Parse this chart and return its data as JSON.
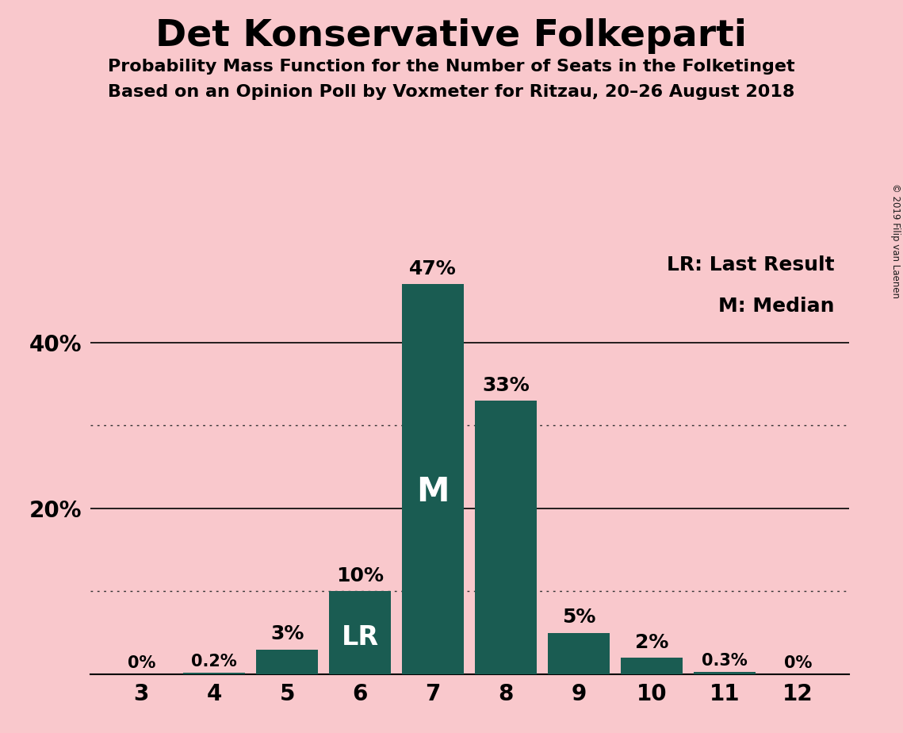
{
  "title": "Det Konservative Folkeparti",
  "subtitle1": "Probability Mass Function for the Number of Seats in the Folketinget",
  "subtitle2": "Based on an Opinion Poll by Voxmeter for Ritzau, 20–26 August 2018",
  "copyright": "© 2019 Filip van Laenen",
  "seats": [
    3,
    4,
    5,
    6,
    7,
    8,
    9,
    10,
    11,
    12
  ],
  "probabilities": [
    0.0,
    0.2,
    3.0,
    10.0,
    47.0,
    33.0,
    5.0,
    2.0,
    0.3,
    0.0
  ],
  "labels": [
    "0%",
    "0.2%",
    "3%",
    "10%",
    "47%",
    "33%",
    "5%",
    "2%",
    "0.3%",
    "0%"
  ],
  "bar_color": "#1a5c52",
  "background_color": "#f9c8cc",
  "median_seat": 7,
  "lr_seat": 6,
  "legend_lr": "LR: Last Result",
  "legend_m": "M: Median",
  "solid_gridlines": [
    20,
    40
  ],
  "dotted_gridlines": [
    10,
    30
  ],
  "ytick_positions": [
    20,
    40
  ],
  "ytick_labels": [
    "20%",
    "40%"
  ],
  "ylim": [
    0,
    53
  ],
  "bar_width": 0.85
}
